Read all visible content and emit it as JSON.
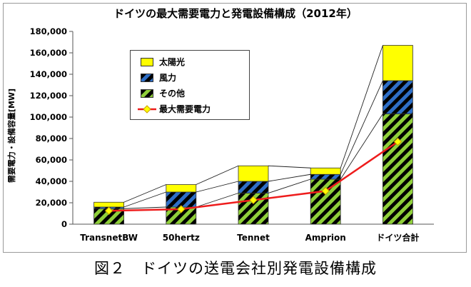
{
  "chart_data": {
    "type": "bar",
    "title": "ドイツの最大需要電力と発電設備構成（2012年）",
    "ylabel": "需要電力・設備容量[MW]",
    "xlabel": "",
    "categories": [
      "TransnetBW",
      "50hertz",
      "Tennet",
      "Amprion",
      "ドイツ合計"
    ],
    "ylim": [
      0,
      180000
    ],
    "yticks": [
      0,
      20000,
      40000,
      60000,
      80000,
      100000,
      120000,
      140000,
      160000,
      180000
    ],
    "ytick_labels": [
      "0",
      "20,000",
      "40,000",
      "60,000",
      "80,000",
      "100,000",
      "120,000",
      "140,000",
      "160,000",
      "180,000"
    ],
    "stacked": true,
    "series": [
      {
        "name": "その他",
        "type": "bar",
        "color": "#8fcf3a",
        "pattern": "diagonal-black-stripes",
        "values": [
          14500,
          16000,
          29000,
          42000,
          103000
        ]
      },
      {
        "name": "風力",
        "type": "bar",
        "color": "#2f6fc7",
        "pattern": "diagonal-black-stripes",
        "values": [
          1500,
          14000,
          11000,
          4500,
          31000
        ]
      },
      {
        "name": "太陽光",
        "type": "bar",
        "color": "#ffff00",
        "values": [
          4500,
          7000,
          14500,
          6000,
          33000
        ]
      },
      {
        "name": "最大需要電力",
        "type": "line",
        "color": "#ee1c1c",
        "marker": "diamond",
        "marker_color": "#ffff00",
        "values": [
          12500,
          14000,
          22500,
          31000,
          77000
        ]
      }
    ],
    "legend": [
      "太陽光",
      "風力",
      "その他",
      "最大需要電力"
    ],
    "legend_position": "top-left",
    "grid": false
  },
  "caption": "図２　ドイツの送電会社別発電設備構成"
}
